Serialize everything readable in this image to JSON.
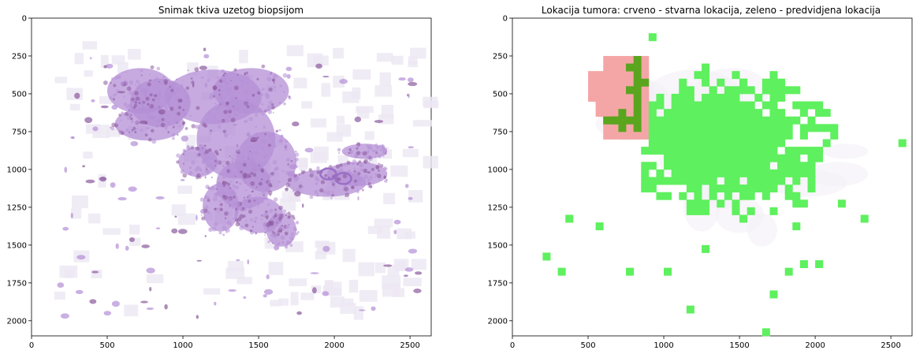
{
  "chart_data": [
    {
      "type": "heatmap",
      "title": "Snimak tkiva uzetog biopsijom",
      "xlabel": "",
      "ylabel": "",
      "xlim": [
        0,
        2640
      ],
      "ylim": [
        2100,
        0
      ],
      "xticks": [
        0,
        500,
        1000,
        1500,
        2000,
        2500
      ],
      "yticks": [
        0,
        250,
        500,
        750,
        1000,
        1250,
        1500,
        1750,
        2000
      ],
      "grid": false,
      "colors": {
        "tissue": "#b48fd6",
        "tissue_dark": "#8a5a9c",
        "bg": "#ffffff"
      }
    },
    {
      "type": "heatmap",
      "title": "Lokacija tumora: crveno - stvarna lokacija, zeleno - predvidjena lokacija",
      "xlabel": "",
      "ylabel": "",
      "xlim": [
        0,
        2640
      ],
      "ylim": [
        2100,
        0
      ],
      "xticks": [
        0,
        500,
        1000,
        1500,
        2000,
        2500
      ],
      "yticks": [
        0,
        250,
        500,
        750,
        1000,
        1250,
        1500,
        1750,
        2000
      ],
      "grid": false,
      "colors": {
        "actual": "#f4a6a6",
        "predicted": "#5ef05e",
        "overlap": "#5aa51e"
      }
    }
  ]
}
